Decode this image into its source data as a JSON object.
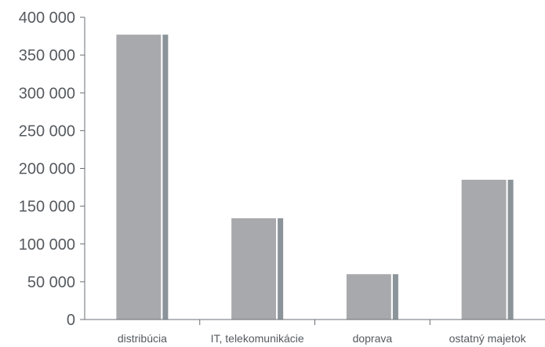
{
  "chart_data": {
    "type": "bar",
    "categories": [
      "distribúcia",
      "IT, telekomunikácie",
      "doprava",
      "ostatný majetok"
    ],
    "values": [
      377000,
      134000,
      60000,
      185000
    ],
    "y_ticks": [
      "400 000",
      "350 000",
      "300 000",
      "250 000",
      "200 000",
      "150 000",
      "100 000",
      "50 000",
      "0"
    ],
    "ylim": [
      0,
      400000
    ],
    "title": "",
    "xlabel": "",
    "ylabel": "",
    "grid": false,
    "legend": "none",
    "colors": {
      "bar_face": "#a8a9ac",
      "bar_side": "#8b9499",
      "bar_highlight": "#ffffff",
      "axis": "#6a6f74",
      "text": "#555a5f"
    }
  }
}
